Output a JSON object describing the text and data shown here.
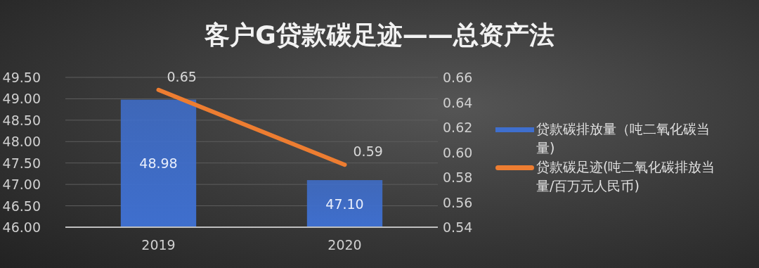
{
  "chart_data": {
    "type": "bar",
    "title": "客户G贷款碳足迹——总资产法",
    "categories": [
      "2019",
      "2020"
    ],
    "series": [
      {
        "name": "贷款碳排放量（吨二氧化碳当量)",
        "color": "#3f6fce",
        "values": [
          48.98,
          47.1
        ],
        "value_labels": [
          "48.98",
          "47.10"
        ]
      },
      {
        "name": "贷款碳足迹(吨二氧化碳排放当量/百万元人民币)",
        "type": "line",
        "axis": "y2",
        "color": "#ed7d31",
        "values": [
          0.65,
          0.59
        ],
        "value_labels": [
          "0.65",
          "0.59"
        ]
      }
    ],
    "ylim": [
      46,
      49.5
    ],
    "yticks": [
      {
        "value": 46,
        "label": "46.00"
      },
      {
        "value": 46.5,
        "label": "46.50"
      },
      {
        "value": 47,
        "label": "47.00"
      },
      {
        "value": 47.5,
        "label": "47.50"
      },
      {
        "value": 48,
        "label": "48.00"
      },
      {
        "value": 48.5,
        "label": "48.50"
      },
      {
        "value": 49,
        "label": "49.00"
      },
      {
        "value": 49.5,
        "label": "49.50"
      }
    ],
    "y2lim": [
      0.54,
      0.66
    ],
    "y2ticks": [
      {
        "value": 0.54,
        "label": "0.54"
      },
      {
        "value": 0.56,
        "label": "0.56"
      },
      {
        "value": 0.58,
        "label": "0.58"
      },
      {
        "value": 0.6,
        "label": "0.60"
      },
      {
        "value": 0.62,
        "label": "0.62"
      },
      {
        "value": 0.64,
        "label": "0.64"
      },
      {
        "value": 0.66,
        "label": "0.66"
      }
    ],
    "grid": "y",
    "legend": "right"
  }
}
